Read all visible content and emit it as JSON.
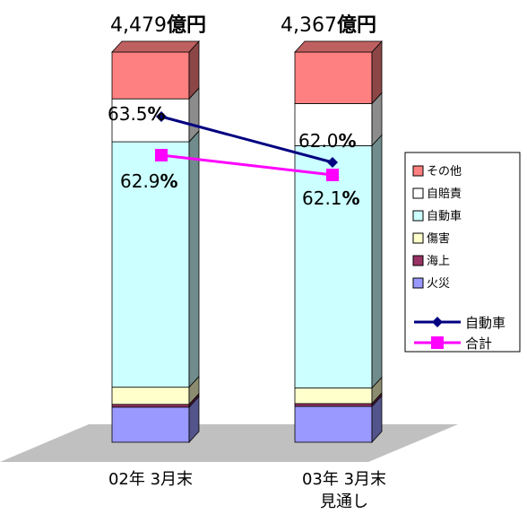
{
  "chart_data": {
    "type": "bar",
    "stacked": true,
    "categories": [
      "02年 3月末",
      "03年 3月末\n見通し"
    ],
    "category_lines": [
      [
        "02年 3月末"
      ],
      [
        "03年 3月末",
        "見通し"
      ]
    ],
    "totals": [
      {
        "number": "4,479",
        "unit": "億円"
      },
      {
        "number": "4,367",
        "unit": "億円"
      }
    ],
    "stack_series": [
      {
        "name": "火災",
        "color": "#9999FF",
        "values": [
          9.0,
          9.2
        ]
      },
      {
        "name": "海上",
        "color": "#993366",
        "values": [
          0.7,
          0.7
        ]
      },
      {
        "name": "傷害",
        "color": "#FFFFCC",
        "values": [
          4.4,
          4.0
        ]
      },
      {
        "name": "自動車",
        "color": "#CCFFFF",
        "values": [
          62.9,
          62.1
        ]
      },
      {
        "name": "自賠責",
        "color": "#FFFFFF",
        "values": [
          11.0,
          10.8
        ]
      },
      {
        "name": "その他",
        "color": "#FF8080",
        "values": [
          12.0,
          13.2
        ]
      }
    ],
    "line_series": [
      {
        "name": "自動車",
        "color": "#000080",
        "marker": "diamond",
        "values": [
          63.5,
          62.0
        ],
        "labels": [
          {
            "number": "63.5",
            "unit": "%"
          },
          {
            "number": "62.0",
            "unit": "%"
          }
        ]
      },
      {
        "name": "合計",
        "color": "#FF00FF",
        "marker": "square",
        "values": [
          62.9,
          62.1
        ],
        "labels": [
          {
            "number": "62.9",
            "unit": "%"
          },
          {
            "number": "62.1",
            "unit": "%"
          }
        ]
      }
    ],
    "ylim": [
      0,
      100
    ],
    "legend_position": "right",
    "grid": false
  }
}
